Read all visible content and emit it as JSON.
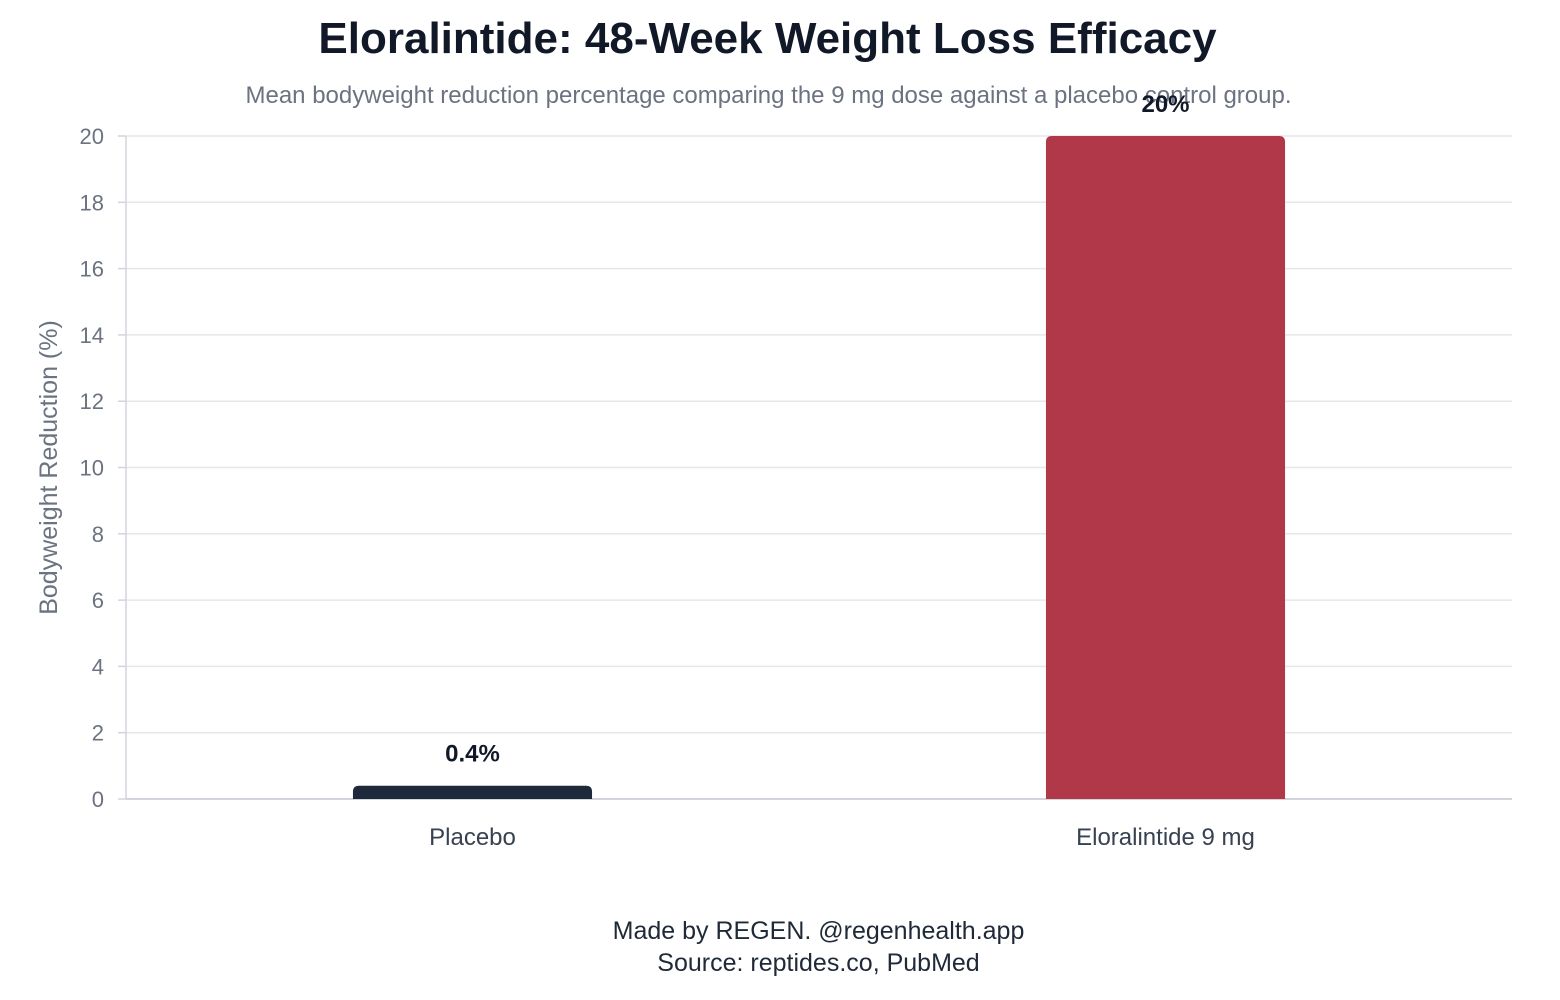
{
  "header": {
    "title": "Eloralintide: 48-Week Weight Loss Efficacy",
    "subtitle": "Mean bodyweight reduction percentage comparing the 9 mg dose against a placebo control group."
  },
  "footer": {
    "credit": "Made by REGEN. @regenhealth.app",
    "source": "Source: reptides.co, PubMed"
  },
  "chart_data": {
    "type": "bar",
    "title": "Eloralintide: 48-Week Weight Loss Efficacy",
    "subtitle": "Mean bodyweight reduction percentage comparing the 9 mg dose against a placebo control group.",
    "ylabel": "Bodyweight Reduction (%)",
    "xlabel": "",
    "categories": [
      "Placebo",
      "Eloralintide 9 mg"
    ],
    "values": [
      0.4,
      20
    ],
    "data_labels": [
      "0.4%",
      "20%"
    ],
    "colors": [
      "#1e293b",
      "#b03848"
    ],
    "ylim": [
      0,
      20
    ],
    "yticks": [
      0,
      2,
      4,
      6,
      8,
      10,
      12,
      14,
      16,
      18,
      20
    ],
    "grid": true,
    "legend": "none"
  }
}
